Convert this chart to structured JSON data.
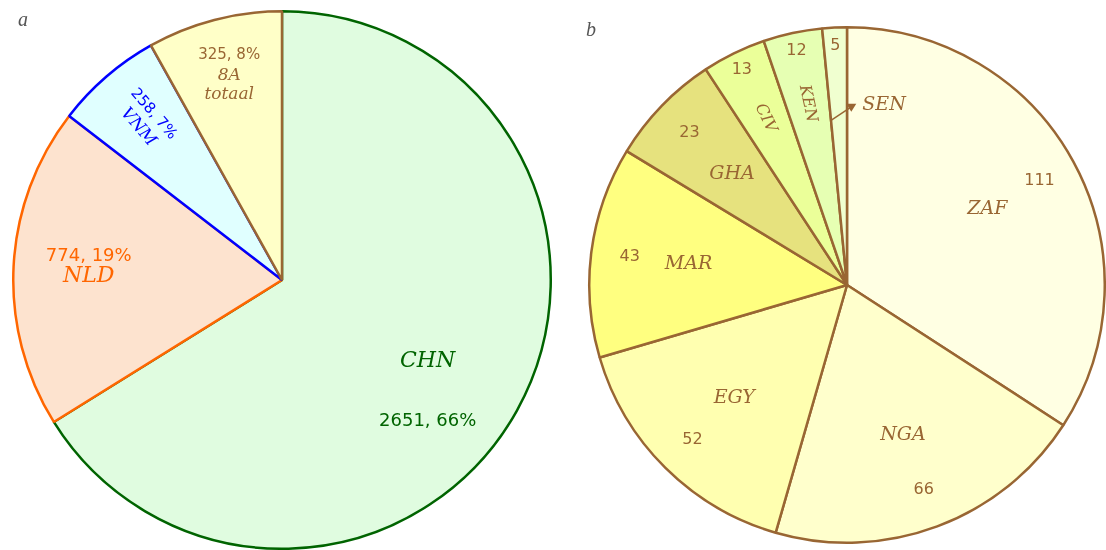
{
  "chart_data": [
    {
      "type": "pie",
      "title": "a",
      "categories": [
        "CHN",
        "NLD",
        "VNM",
        "8A totaal"
      ],
      "values": [
        2651,
        774,
        258,
        325
      ],
      "colors": [
        "#e0fce0",
        "#fde3cf",
        "#e0ffff",
        "#ffffc8"
      ],
      "value_labels": [
        "2651, 66%",
        "774, 19%",
        "258, 7%",
        "325, 8%"
      ],
      "legend": false
    },
    {
      "type": "pie",
      "title": "b",
      "categories": [
        "ZAF",
        "NGA",
        "EGY",
        "MAR",
        "GHA",
        "CIV",
        "KEN",
        "SEN"
      ],
      "values": [
        111,
        66,
        52,
        43,
        23,
        13,
        12,
        5
      ],
      "colors": [
        "#ffffe3",
        "#ffffcc",
        "#ffffb0",
        "#ffff80",
        "#e6e27e",
        "#ebff99",
        "#e6ffb3",
        "#f0ffd0"
      ],
      "data_labels": true,
      "legend": false
    }
  ]
}
